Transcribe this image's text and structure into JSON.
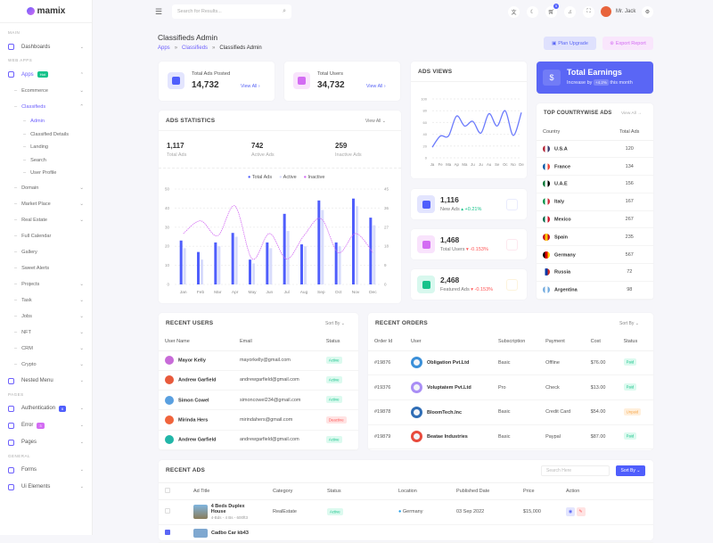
{
  "brand": "mamix",
  "colors": {
    "primary": "#6c5ffc",
    "secondary": "#d36cf3",
    "success": "#17c38b",
    "danger": "#f55",
    "warning": "#f7a84a"
  },
  "sidebar": {
    "sections": [
      "MAIN",
      "WEB APPS",
      "PAGES",
      "GENERAL"
    ],
    "dashboards": "Dashboards",
    "apps": {
      "label": "Apps",
      "badge": "Hot"
    },
    "apps_items": [
      "Ecommerce",
      "Classifieds"
    ],
    "classifieds_items": [
      "Admin",
      "Classified Details",
      "Landing",
      "Search",
      "User Profile"
    ],
    "more_apps": [
      {
        "label": "Domain",
        "chev": true
      },
      {
        "label": "Market Place",
        "chev": true
      },
      {
        "label": "Real Estate",
        "chev": true
      },
      {
        "label": "Full Calendar",
        "chev": false
      },
      {
        "label": "Gallery",
        "chev": false
      },
      {
        "label": "Sweet Alerts",
        "chev": false
      },
      {
        "label": "Projects",
        "chev": true
      },
      {
        "label": "Task",
        "chev": true
      },
      {
        "label": "Jobs",
        "chev": true
      },
      {
        "label": "NFT",
        "chev": true
      },
      {
        "label": "CRM",
        "chev": true
      },
      {
        "label": "Crypto",
        "chev": true
      }
    ],
    "nested": "Nested Menu",
    "authentication": {
      "label": "Authentication",
      "badge": "6"
    },
    "error": {
      "label": "Error",
      "badge": "3"
    },
    "pages": "Pages",
    "forms": "Forms",
    "ui": "Ui Elements"
  },
  "header": {
    "search_placeholder": "Search for Results...",
    "cart_count": "5",
    "user": "Mr. Jack",
    "icons": [
      "translate-icon",
      "theme-icon",
      "cart-icon",
      "bell-icon",
      "fullscreen-icon"
    ]
  },
  "page": {
    "title": "Classifieds Admin",
    "breadcrumb": [
      "Apps",
      "Classifieds",
      "Classifieds Admin"
    ],
    "plan_upgrade": "Plan Upgrade",
    "export_report": "Export Report"
  },
  "kpi": [
    {
      "label": "Total Ads Posted",
      "value": "14,732",
      "link": "View All"
    },
    {
      "label": "Total Users",
      "value": "34,732",
      "link": "View All"
    }
  ],
  "earnings": {
    "title": "Total Earnings",
    "prefix": "Increase by",
    "pct": "+4.2%",
    "suffix": "this month"
  },
  "ads_stats": {
    "title": "ADS STATISTICS",
    "view_all": "View All",
    "totals": [
      {
        "value": "1,117",
        "label": "Total Ads"
      },
      {
        "value": "742",
        "label": "Active Ads"
      },
      {
        "value": "259",
        "label": "Inactive Ads"
      }
    ]
  },
  "ads_views": {
    "title": "ADS VIEWS"
  },
  "mini_stats": [
    {
      "value": "1,116",
      "label": "New Ads",
      "change": "+0.21%",
      "dir": "up"
    },
    {
      "value": "1,468",
      "label": "Total Users",
      "change": "-0.153%",
      "dir": "down"
    },
    {
      "value": "2,468",
      "label": "Featured Ads",
      "change": "-0.153%",
      "dir": "down"
    }
  ],
  "countries": {
    "title": "TOP COUNTRYWISE ADS",
    "view_all": "View All",
    "headers": [
      "Country",
      "Total Ads"
    ],
    "rows": [
      {
        "name": "U.S.A",
        "ads": "120"
      },
      {
        "name": "France",
        "ads": "134"
      },
      {
        "name": "U.A.E",
        "ads": "156"
      },
      {
        "name": "Italy",
        "ads": "167"
      },
      {
        "name": "Mexico",
        "ads": "267"
      },
      {
        "name": "Spain",
        "ads": "235"
      },
      {
        "name": "Germany",
        "ads": "567"
      },
      {
        "name": "Russia",
        "ads": "72"
      },
      {
        "name": "Argentina",
        "ads": "98"
      }
    ]
  },
  "recent_users": {
    "title": "RECENT USERS",
    "sort": "Sort By",
    "headers": [
      "User Name",
      "Email",
      "Status"
    ],
    "rows": [
      {
        "name": "Mayor Kelly",
        "email": "mayorkelly@gmail.com",
        "status": "Active"
      },
      {
        "name": "Andrew Garfield",
        "email": "andrewgarfield@gmail.com",
        "status": "Active"
      },
      {
        "name": "Simon Cowel",
        "email": "simoncowel234@gmail.com",
        "status": "Active"
      },
      {
        "name": "Mirinda Hers",
        "email": "mirindahers@gmail.com",
        "status": "Deactive"
      },
      {
        "name": "Andrew Garfield",
        "email": "andrewgarfield@gmail.com",
        "status": "Active"
      }
    ]
  },
  "recent_orders": {
    "title": "RECENT ORDERS",
    "sort": "Sort By",
    "headers": [
      "Order Id",
      "User",
      "Subscription",
      "Payment",
      "Cost",
      "Status"
    ],
    "rows": [
      {
        "id": "#19876",
        "user": "Obligation Pvt.Ltd",
        "sub": "Basic",
        "pay": "Offline",
        "cost": "$76.00",
        "status": "Paid"
      },
      {
        "id": "#19376",
        "user": "Voluptatem Pvt.Ltd",
        "sub": "Pro",
        "pay": "Check",
        "cost": "$13.00",
        "status": "Paid"
      },
      {
        "id": "#19878",
        "user": "BloomTech.Inc",
        "sub": "Basic",
        "pay": "Credit Card",
        "cost": "$54.00",
        "status": "Unpaid"
      },
      {
        "id": "#19879",
        "user": "Beatae Industries",
        "sub": "Basic",
        "pay": "Paypal",
        "cost": "$87.00",
        "status": "Paid"
      }
    ]
  },
  "recent_ads": {
    "title": "RECENT ADS",
    "search_placeholder": "Search Here",
    "sort": "Sort By",
    "headers": [
      "Ad Title",
      "Category",
      "Status",
      "Location",
      "Published Date",
      "Price",
      "Action"
    ],
    "rows": [
      {
        "title": "4 Beds Duplex House",
        "sub": "4-Bds - 4 Bs - 600ft3",
        "category": "RealEstate",
        "status": "Active",
        "location": "Germany",
        "date": "03 Sep 2022",
        "price": "$15,000"
      },
      {
        "title": "Cadbo Car kb43"
      }
    ]
  },
  "chart_data": [
    {
      "type": "bar",
      "title": "ADS STATISTICS",
      "categories": [
        "Jan",
        "Feb",
        "Mar",
        "Apr",
        "May",
        "Jun",
        "Jul",
        "Aug",
        "Sep",
        "Oct",
        "Nov",
        "Dec"
      ],
      "series": [
        {
          "name": "Total Ads",
          "type": "bar",
          "axis": "left",
          "color": "#4f5efc",
          "values": [
            23,
            17,
            22,
            27,
            13,
            22,
            37,
            21,
            44,
            22,
            45,
            35
          ]
        },
        {
          "name": "Active",
          "type": "bar",
          "axis": "left",
          "color": "#d8dcfb",
          "values": [
            19,
            13,
            20,
            25,
            11,
            19,
            28,
            20,
            39,
            20,
            41,
            31
          ]
        },
        {
          "name": "Inactive",
          "type": "line",
          "axis": "right",
          "color": "#d36cf3",
          "values": [
            24,
            30,
            23,
            37,
            12,
            24,
            12,
            23,
            31,
            15,
            24,
            15
          ]
        }
      ],
      "ylim": [
        0,
        50
      ],
      "yticks": [
        0,
        10,
        20,
        30,
        40,
        50
      ],
      "y2lim": [
        0,
        45
      ],
      "y2ticks": [
        0,
        9,
        18,
        27,
        36,
        45
      ],
      "legend": "top",
      "grid": true
    },
    {
      "type": "line",
      "title": "ADS VIEWS",
      "categories": [
        "Ja",
        "Fe",
        "Ma",
        "Ap",
        "Ma",
        "Ju",
        "Ju",
        "Au",
        "Se",
        "Oc",
        "No",
        "De"
      ],
      "values": [
        18,
        37,
        37,
        71,
        54,
        62,
        42,
        75,
        54,
        80,
        38,
        77
      ],
      "ylim": [
        0,
        100
      ],
      "yticks": [
        0,
        20,
        40,
        60,
        80,
        100
      ],
      "color": "#6c7bfc",
      "grid": true
    }
  ]
}
